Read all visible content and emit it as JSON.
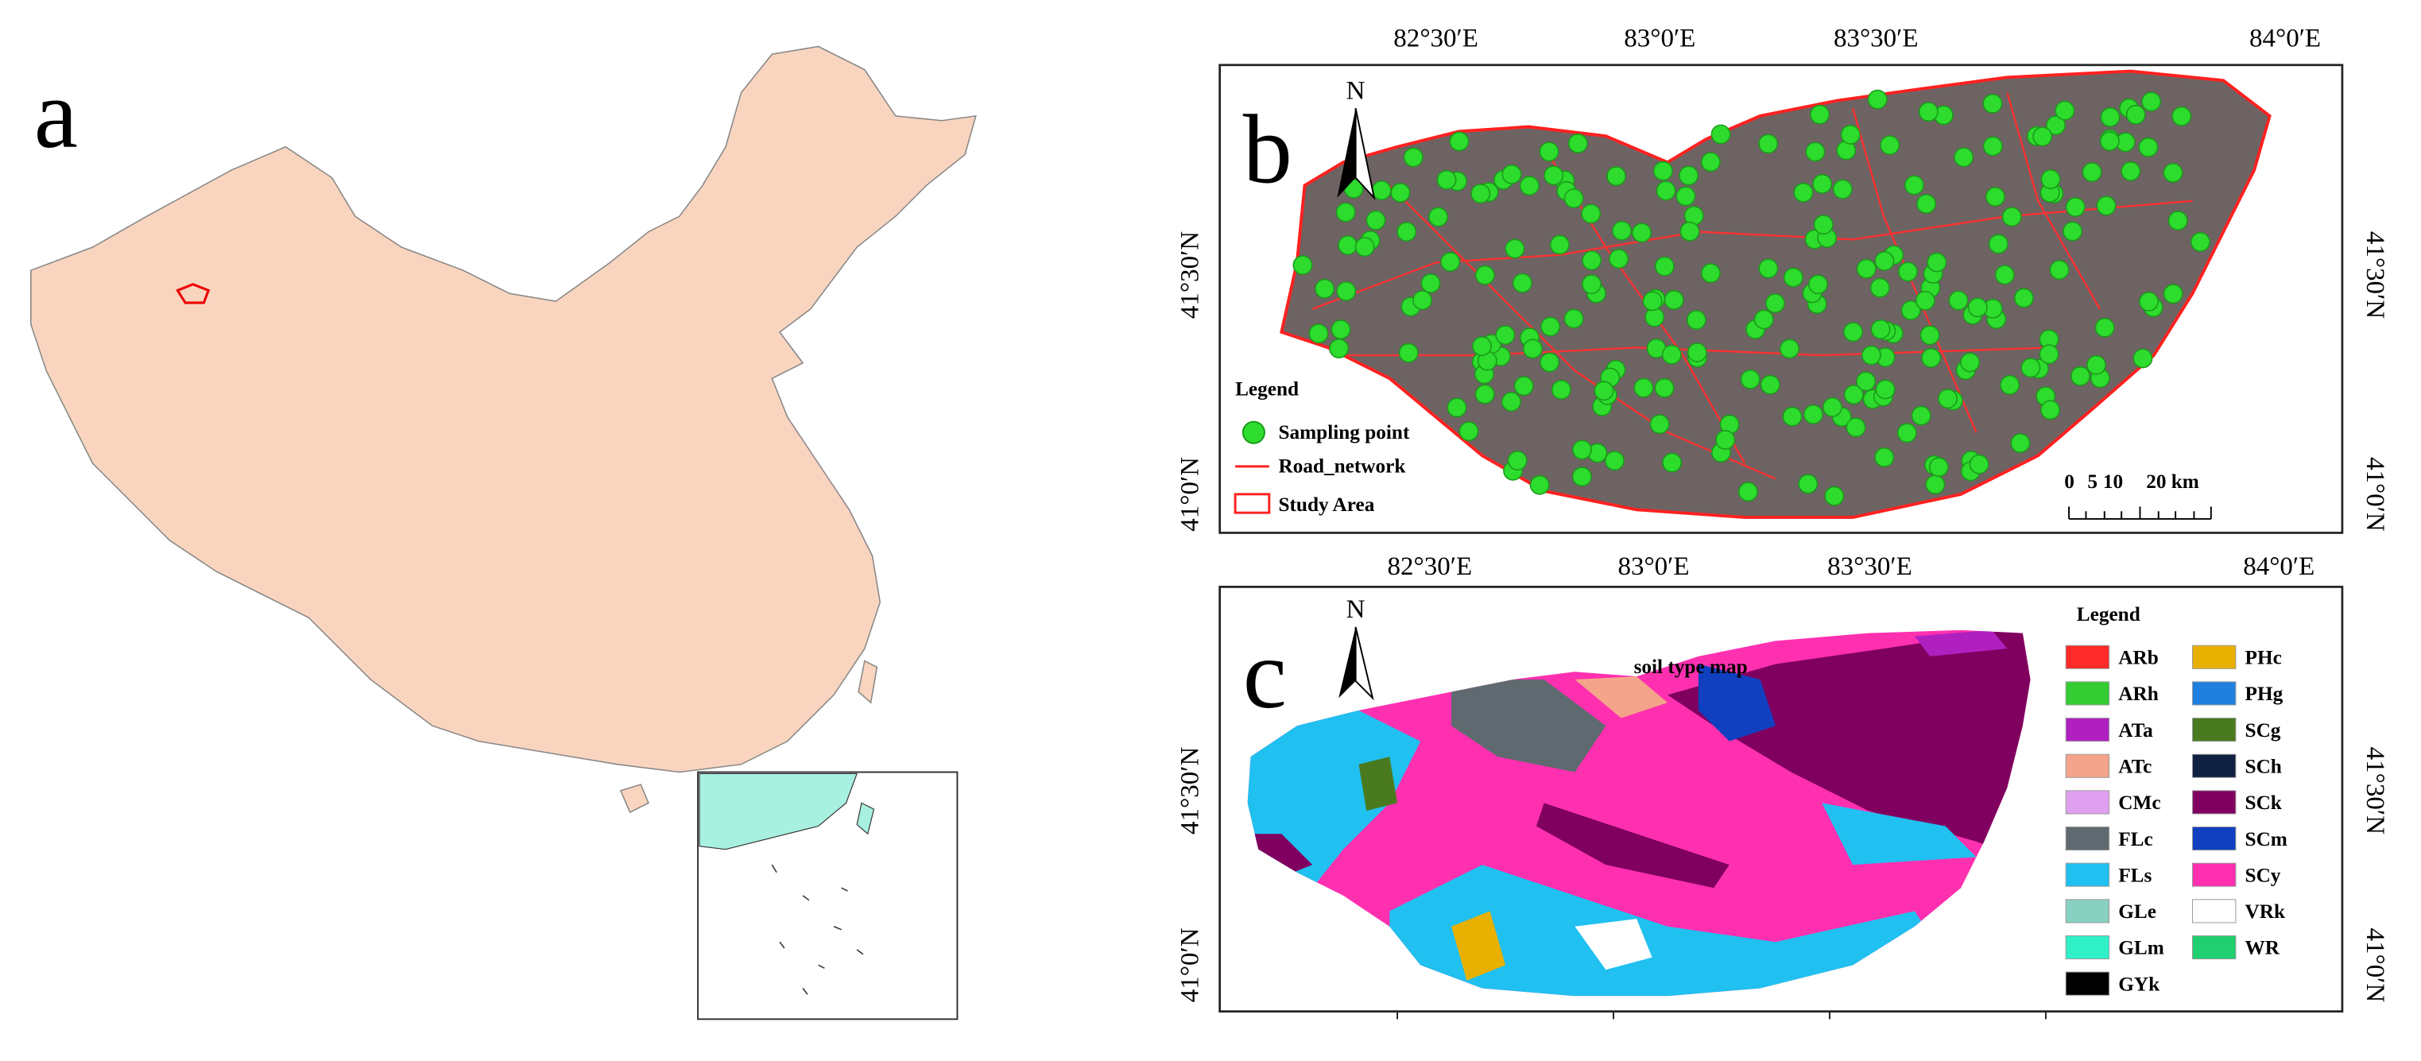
{
  "panel_a": {
    "label": "a"
  },
  "panel_b": {
    "label": "b",
    "north": "N",
    "top_ticks": [
      "82°30′E",
      "83°0′E",
      "83°30′E",
      "84°0′E"
    ],
    "bottom_ticks": [
      "82°30′E",
      "83°0′E",
      "83°30′E",
      "84°0′E"
    ],
    "left_ticks": [
      "41°30′N",
      "41°0′N"
    ],
    "right_ticks": [
      "41°30′N",
      "41°0′N"
    ],
    "legend": {
      "title": "Legend",
      "items": [
        "Sampling point",
        "Road_network",
        "Study Area"
      ]
    },
    "scale_labels": [
      "0",
      "5",
      "10",
      "20 km"
    ]
  },
  "panel_c": {
    "label": "c",
    "north": "N",
    "title": "soil type map",
    "left_ticks": [
      "41°30′N",
      "41°0′N"
    ],
    "right_ticks": [
      "41°30′N",
      "41°0′N"
    ],
    "legend": {
      "title": "Legend",
      "items": [
        {
          "name": "ARb",
          "color": "#ff2a2a"
        },
        {
          "name": "ARh",
          "color": "#33cc33"
        },
        {
          "name": "ATa",
          "color": "#b020c0"
        },
        {
          "name": "ATc",
          "color": "#f4a48a"
        },
        {
          "name": "CMc",
          "color": "#e0a0f0"
        },
        {
          "name": "FLc",
          "color": "#5f6a70"
        },
        {
          "name": "FLs",
          "color": "#20c0f0"
        },
        {
          "name": "GLe",
          "color": "#88d0c0"
        },
        {
          "name": "GLm",
          "color": "#30f0c8"
        },
        {
          "name": "GYk",
          "color": "#000000"
        },
        {
          "name": "PHc",
          "color": "#e8b000"
        },
        {
          "name": "PHg",
          "color": "#2080e0"
        },
        {
          "name": "SCg",
          "color": "#4a7a20"
        },
        {
          "name": "SCh",
          "color": "#102040"
        },
        {
          "name": "SCk",
          "color": "#800060"
        },
        {
          "name": "SCm",
          "color": "#1040c0"
        },
        {
          "name": "SCy",
          "color": "#ff30b0"
        },
        {
          "name": "VRk",
          "color": "#ffffff"
        },
        {
          "name": "WR",
          "color": "#20d070"
        }
      ]
    }
  }
}
